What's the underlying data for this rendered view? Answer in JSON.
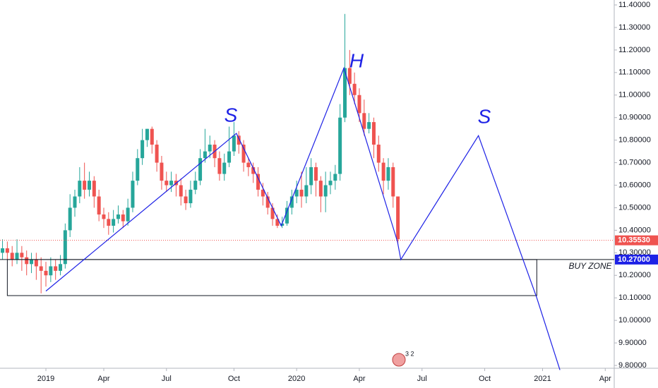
{
  "chart_data": {
    "type": "candlestick",
    "x": [
      -9,
      -8,
      -7,
      -6,
      -5,
      -4,
      -3,
      -2,
      -1,
      0,
      1,
      2,
      3,
      4,
      5,
      6,
      7,
      8,
      9,
      10,
      11,
      12,
      13,
      14,
      15,
      16,
      17,
      18,
      19,
      20,
      21,
      22,
      23,
      24,
      25,
      26,
      27,
      28,
      29,
      30,
      31,
      32,
      33,
      34,
      35,
      36,
      37,
      38,
      39,
      40,
      41,
      42,
      43,
      44,
      45,
      46,
      47,
      48,
      49,
      50,
      51,
      52,
      53,
      54,
      55,
      56,
      57,
      58,
      59,
      60,
      61,
      62,
      63,
      64,
      65,
      66,
      67,
      68,
      69,
      70,
      71,
      72,
      73
    ],
    "open": [
      10.3,
      10.32,
      10.3,
      10.27,
      10.3,
      10.28,
      10.25,
      10.27,
      10.24,
      10.22,
      10.2,
      10.24,
      10.22,
      10.25,
      10.4,
      10.5,
      10.55,
      10.62,
      10.58,
      10.62,
      10.55,
      10.47,
      10.45,
      10.42,
      10.45,
      10.47,
      10.44,
      10.5,
      10.62,
      10.72,
      10.8,
      10.85,
      10.78,
      10.7,
      10.62,
      10.6,
      10.62,
      10.6,
      10.55,
      10.52,
      10.58,
      10.62,
      10.72,
      10.75,
      10.78,
      10.72,
      10.65,
      10.7,
      10.75,
      10.82,
      10.78,
      10.7,
      10.68,
      10.65,
      10.58,
      10.55,
      10.5,
      10.45,
      10.42,
      10.43,
      10.5,
      10.55,
      10.58,
      10.55,
      10.6,
      10.68,
      10.62,
      10.55,
      10.6,
      10.62,
      10.65,
      10.9,
      11.12,
      11.05,
      11.0,
      10.92,
      10.85,
      10.88,
      10.78,
      10.7,
      10.62,
      10.68,
      10.55
    ],
    "high": [
      10.36,
      10.35,
      10.33,
      10.36,
      10.33,
      10.31,
      10.3,
      10.3,
      10.28,
      10.26,
      10.28,
      10.27,
      10.29,
      10.43,
      10.56,
      10.58,
      10.68,
      10.7,
      10.66,
      10.64,
      10.58,
      10.5,
      10.48,
      10.49,
      10.51,
      10.49,
      10.54,
      10.66,
      10.76,
      10.85,
      10.85,
      10.86,
      10.8,
      10.73,
      10.66,
      10.66,
      10.65,
      10.63,
      10.58,
      10.62,
      10.66,
      10.76,
      10.85,
      10.82,
      10.8,
      10.75,
      10.74,
      10.86,
      10.88,
      10.84,
      10.8,
      10.72,
      10.7,
      10.68,
      10.61,
      10.57,
      10.52,
      10.47,
      10.46,
      10.53,
      10.58,
      10.62,
      10.66,
      10.68,
      10.72,
      10.7,
      10.64,
      10.66,
      10.66,
      10.69,
      10.96,
      11.36,
      11.2,
      11.1,
      11.03,
      10.98,
      10.92,
      10.9,
      10.82,
      10.72,
      10.72,
      10.7,
      10.55
    ],
    "low": [
      10.27,
      10.27,
      10.24,
      10.25,
      10.22,
      10.2,
      10.21,
      10.18,
      10.12,
      10.15,
      10.17,
      10.18,
      10.2,
      10.23,
      10.37,
      10.46,
      10.52,
      10.54,
      10.55,
      10.5,
      10.44,
      10.41,
      10.38,
      10.39,
      10.43,
      10.41,
      10.42,
      10.48,
      10.6,
      10.69,
      10.77,
      10.74,
      10.66,
      10.58,
      10.57,
      10.57,
      10.55,
      10.51,
      10.49,
      10.5,
      10.56,
      10.6,
      10.7,
      10.72,
      10.68,
      10.62,
      10.62,
      10.68,
      10.73,
      10.74,
      10.66,
      10.64,
      10.61,
      10.55,
      10.51,
      10.47,
      10.42,
      10.41,
      10.41,
      10.42,
      10.47,
      10.52,
      10.5,
      10.52,
      10.56,
      10.55,
      10.48,
      10.48,
      10.56,
      10.58,
      10.62,
      10.88,
      11.0,
      10.96,
      10.88,
      10.82,
      10.83,
      10.72,
      10.66,
      10.56,
      10.58,
      10.5,
      10.34
    ],
    "close": [
      10.32,
      10.3,
      10.27,
      10.3,
      10.28,
      10.25,
      10.27,
      10.24,
      10.22,
      10.2,
      10.24,
      10.22,
      10.25,
      10.4,
      10.5,
      10.55,
      10.62,
      10.58,
      10.62,
      10.55,
      10.47,
      10.45,
      10.42,
      10.45,
      10.47,
      10.44,
      10.5,
      10.62,
      10.72,
      10.8,
      10.85,
      10.78,
      10.7,
      10.62,
      10.6,
      10.62,
      10.6,
      10.55,
      10.52,
      10.58,
      10.62,
      10.72,
      10.75,
      10.78,
      10.72,
      10.65,
      10.7,
      10.75,
      10.82,
      10.78,
      10.7,
      10.68,
      10.65,
      10.58,
      10.55,
      10.5,
      10.45,
      10.42,
      10.43,
      10.5,
      10.55,
      10.58,
      10.55,
      10.6,
      10.68,
      10.62,
      10.55,
      10.6,
      10.62,
      10.65,
      10.9,
      11.12,
      11.05,
      11.0,
      10.92,
      10.85,
      10.88,
      10.78,
      10.7,
      10.62,
      10.68,
      10.55,
      10.36
    ],
    "up_color": "#26a69a",
    "down_color": "#ef5350",
    "xlim": [
      -9.52,
      117.86
    ],
    "xticks": [
      {
        "value": 0,
        "label": "2019"
      },
      {
        "value": 12,
        "label": "Apr"
      },
      {
        "value": 25,
        "label": "Jul"
      },
      {
        "value": 39,
        "label": "Oct"
      },
      {
        "value": 52,
        "label": "2020"
      },
      {
        "value": 65,
        "label": "Apr"
      },
      {
        "value": 78,
        "label": "Jul"
      },
      {
        "value": 91,
        "label": "Oct"
      },
      {
        "value": 103,
        "label": "2021"
      },
      {
        "value": 116,
        "label": "Apr"
      }
    ],
    "ylim": [
      9.7876,
      11.4219
    ],
    "yticks": [
      {
        "value": 9.8,
        "label": "9.80000"
      },
      {
        "value": 9.9,
        "label": "9.90000"
      },
      {
        "value": 10.0,
        "label": "10.00000"
      },
      {
        "value": 10.1,
        "label": "10.10000"
      },
      {
        "value": 10.2,
        "label": "10.20000"
      },
      {
        "value": 10.3,
        "label": "10.30000"
      },
      {
        "value": 10.4,
        "label": "10.40000"
      },
      {
        "value": 10.5,
        "label": "10.50000"
      },
      {
        "value": 10.6,
        "label": "10.60000"
      },
      {
        "value": 10.7,
        "label": "10.70000"
      },
      {
        "value": 10.8,
        "label": "10.80000"
      },
      {
        "value": 10.9,
        "label": "10.90000"
      },
      {
        "value": 11.0,
        "label": "11.00000"
      },
      {
        "value": 11.1,
        "label": "11.10000"
      },
      {
        "value": 11.2,
        "label": "11.20000"
      },
      {
        "value": 11.3,
        "label": "11.30000"
      },
      {
        "value": 11.4,
        "label": "11.40000"
      }
    ],
    "last_price": {
      "value": 10.3553,
      "label": "10.35530",
      "color": "#ef5350"
    },
    "level": {
      "value": 10.27,
      "label": "10.27000",
      "color": "#1e22e6"
    },
    "pattern_line": {
      "color": "#1e22e6",
      "x": [
        0,
        39.5,
        48.8,
        61.8,
        72.9,
        73.6,
        89.7,
        101.8,
        106.6
      ],
      "y": [
        10.13,
        10.83,
        10.42,
        11.12,
        10.35,
        10.27,
        10.82,
        10.1,
        9.78
      ]
    },
    "zone": {
      "label": "BUY ZONE",
      "x": [
        -8,
        101.8
      ],
      "y": [
        10.27,
        10.11
      ]
    },
    "labels": [
      "S",
      "H",
      "S"
    ],
    "badge": "3 2"
  }
}
